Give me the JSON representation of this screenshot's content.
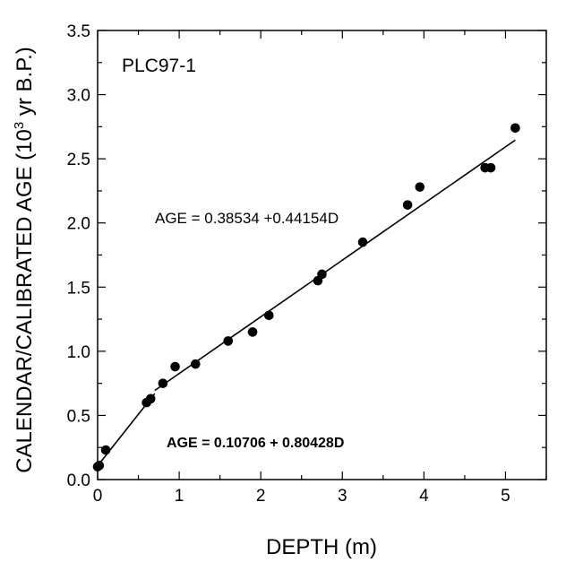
{
  "chart_data": {
    "type": "scatter",
    "panel_label": "PLC97-1",
    "xlabel": "DEPTH (m)",
    "ylabel_main": "CALENDAR/CALIBRATED AGE  (10",
    "ylabel_sup": "3",
    "ylabel_tail": " yr B.P.)",
    "xlim": [
      0,
      5.5
    ],
    "ylim": [
      0,
      3.5
    ],
    "xticks": [
      0,
      1,
      2,
      3,
      4,
      5
    ],
    "yticks": [
      0.0,
      0.5,
      1.0,
      1.5,
      2.0,
      2.5,
      3.0,
      3.5
    ],
    "xtick_labels": [
      "0",
      "1",
      "2",
      "3",
      "4",
      "5"
    ],
    "ytick_labels": [
      "0.0",
      "0.5",
      "1.0",
      "1.5",
      "2.0",
      "2.5",
      "3.0",
      "3.5"
    ],
    "grid": false,
    "points": [
      {
        "x": 0.0,
        "y": 0.1
      },
      {
        "x": 0.02,
        "y": 0.11
      },
      {
        "x": 0.1,
        "y": 0.23
      },
      {
        "x": 0.6,
        "y": 0.6
      },
      {
        "x": 0.65,
        "y": 0.63
      },
      {
        "x": 0.8,
        "y": 0.75
      },
      {
        "x": 0.95,
        "y": 0.88
      },
      {
        "x": 1.2,
        "y": 0.9
      },
      {
        "x": 1.6,
        "y": 1.08
      },
      {
        "x": 1.9,
        "y": 1.15
      },
      {
        "x": 2.1,
        "y": 1.28
      },
      {
        "x": 2.7,
        "y": 1.55
      },
      {
        "x": 2.75,
        "y": 1.6
      },
      {
        "x": 3.25,
        "y": 1.85
      },
      {
        "x": 3.8,
        "y": 2.14
      },
      {
        "x": 3.95,
        "y": 2.28
      },
      {
        "x": 4.75,
        "y": 2.43
      },
      {
        "x": 4.82,
        "y": 2.43
      },
      {
        "x": 5.12,
        "y": 2.74
      }
    ],
    "fits": [
      {
        "x": [
          0.0,
          0.7
        ],
        "intercept": 0.10706,
        "slope": 0.80428,
        "label": "AGE = 0.10706 + 0.80428D"
      },
      {
        "x": [
          0.7,
          5.12
        ],
        "intercept": 0.38534,
        "slope": 0.44154,
        "label": "AGE =  0.38534 +0.44154D"
      }
    ]
  }
}
